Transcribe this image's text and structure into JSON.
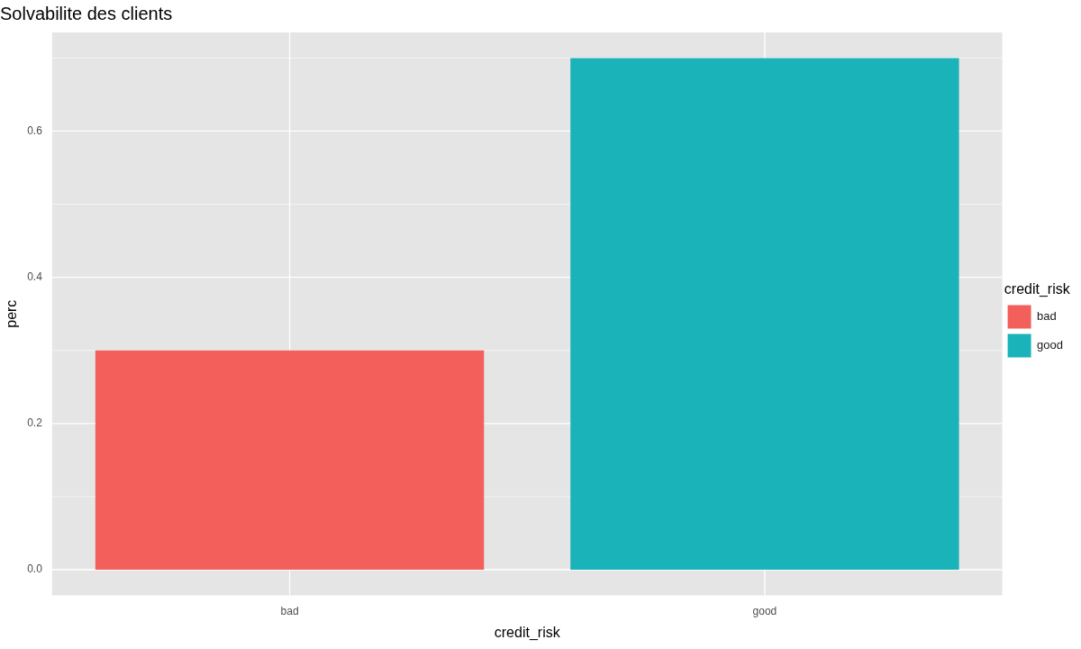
{
  "chart_data": {
    "type": "bar",
    "title": "Solvabilite des clients",
    "xlabel": "credit_risk",
    "ylabel": "perc",
    "legend_title": "credit_risk",
    "categories": [
      "bad",
      "good"
    ],
    "series": [
      {
        "name": "bad",
        "color": "#f35f5b",
        "values": [
          0.3,
          null
        ]
      },
      {
        "name": "good",
        "color": "#1ab3b9",
        "values": [
          null,
          0.7
        ]
      }
    ],
    "ylim": [
      -0.035,
      0.735
    ],
    "yticks": [
      {
        "value": 0,
        "label": "0.0"
      },
      {
        "value": 0.1,
        "label": null
      },
      {
        "value": 0.2,
        "label": "0.2"
      },
      {
        "value": 0.3,
        "label": null
      },
      {
        "value": 0.4,
        "label": "0.4"
      },
      {
        "value": 0.5,
        "label": null
      },
      {
        "value": 0.6,
        "label": "0.6"
      },
      {
        "value": 0.7,
        "label": null
      }
    ],
    "grid": true,
    "legend": "right"
  }
}
